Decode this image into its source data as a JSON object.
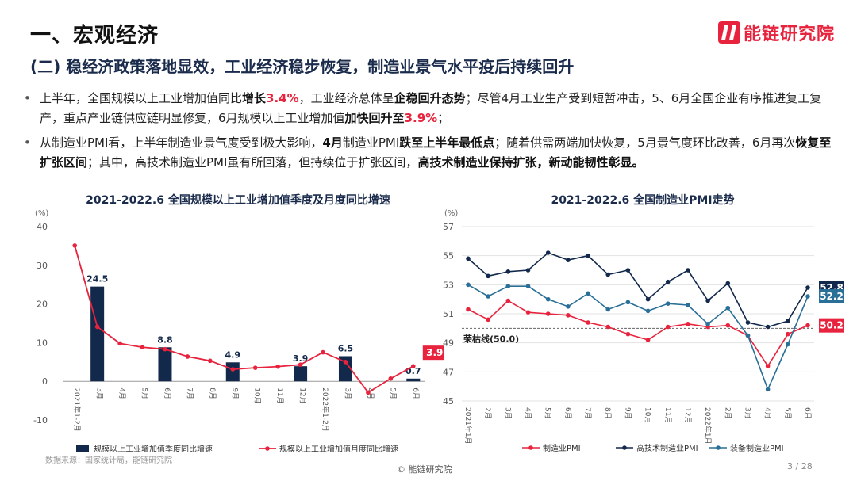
{
  "header": {
    "section_title": "一、宏观经济",
    "subtitle": "(二) 稳经济政策落地显效，工业经济稳步恢复，制造业景气水平疫后持续回升",
    "logo_text": "能链研究院"
  },
  "bullets": [
    {
      "segments": [
        {
          "text": "上半年，全国规模以上工业增加值同比",
          "style": "normal"
        },
        {
          "text": "增长",
          "style": "bold"
        },
        {
          "text": "3.4%",
          "style": "red"
        },
        {
          "text": "，工业经济总体呈",
          "style": "normal"
        },
        {
          "text": "企稳回升态势",
          "style": "bold"
        },
        {
          "text": "；尽管4月工业生产受到短暂冲击，5、6月全国企业有序推进复工复产，重点产业链供应链明显修复，6月规模以上工业增加值",
          "style": "normal"
        },
        {
          "text": "加快回升至",
          "style": "bold"
        },
        {
          "text": "3.9%",
          "style": "red"
        },
        {
          "text": "；",
          "style": "normal"
        }
      ]
    },
    {
      "segments": [
        {
          "text": "从制造业PMI看，上半年制造业景气度受到极大影响，",
          "style": "normal"
        },
        {
          "text": "4月",
          "style": "bold"
        },
        {
          "text": "制造业PMI",
          "style": "normal"
        },
        {
          "text": "跌至上半年最低点",
          "style": "bold"
        },
        {
          "text": "；随着供需两端加快恢复，5月景气度环比改善，6月再次",
          "style": "normal"
        },
        {
          "text": "恢复至扩张区间",
          "style": "bold"
        },
        {
          "text": "；其中，高技术制造业PMI虽有所回落，但持续位于扩张区间，",
          "style": "normal"
        },
        {
          "text": "高技术制造业保持扩张，新动能韧性彰显。",
          "style": "bold"
        }
      ]
    }
  ],
  "footer": {
    "source": "数据来源：国家统计局，能链研究院",
    "brand": "© 能链研究院",
    "page": "3 / 28"
  },
  "colors": {
    "navy": "#13294b",
    "red": "#e8233d",
    "teal": "#2a6f97",
    "grid": "#e3e3e3"
  },
  "chart_data": [
    {
      "type": "bar+line",
      "title": "2021-2022.6 全国规模以上工业增加值季度及月度同比增速",
      "yunit": "(%)",
      "ylim": [
        -10,
        40
      ],
      "yticks": [
        -10,
        0,
        10,
        20,
        30,
        40
      ],
      "categories": [
        "2021年1-2月",
        "3月",
        "4月",
        "5月",
        "6月",
        "7月",
        "8月",
        "9月",
        "10月",
        "11月",
        "12月",
        "2022年1-2月",
        "3月",
        "4月",
        "5月",
        "6月"
      ],
      "bar_series": {
        "name": "规模以上工业增加值季度同比增速",
        "values": [
          null,
          24.5,
          null,
          null,
          8.8,
          null,
          null,
          4.9,
          null,
          null,
          3.9,
          null,
          6.5,
          null,
          null,
          0.7
        ],
        "labels": [
          null,
          "24.5",
          null,
          null,
          "8.8",
          null,
          null,
          "4.9",
          null,
          null,
          "3.9",
          null,
          "6.5",
          null,
          null,
          "0.7"
        ]
      },
      "line_series": {
        "name": "规模以上工业增加值月度同比增速",
        "values": [
          35.1,
          14.1,
          9.8,
          8.8,
          8.3,
          6.4,
          5.3,
          3.1,
          3.5,
          3.8,
          4.3,
          7.5,
          5.0,
          -2.9,
          0.7,
          3.9
        ],
        "end_label": "3.9"
      }
    },
    {
      "type": "line",
      "title": "2021-2022.6 全国制造业PMI走势",
      "yunit": "(%)",
      "ylim": [
        45,
        57
      ],
      "yticks": [
        45,
        47,
        49,
        51,
        53,
        55,
        57
      ],
      "categories": [
        "2021年1月",
        "2月",
        "3月",
        "4月",
        "5月",
        "6月",
        "7月",
        "8月",
        "9月",
        "10月",
        "11月",
        "12月",
        "2022年1月",
        "2月",
        "3月",
        "4月",
        "5月",
        "6月"
      ],
      "reference_line": {
        "value": 50.0,
        "label": "荣枯线(50.0)"
      },
      "series": [
        {
          "name": "制造业PMI",
          "color_key": "red",
          "values": [
            51.3,
            50.6,
            51.9,
            51.1,
            51.0,
            50.9,
            50.4,
            50.1,
            49.6,
            49.2,
            50.1,
            50.3,
            50.1,
            50.2,
            49.5,
            47.4,
            49.6,
            50.2
          ],
          "end_label": "50.2"
        },
        {
          "name": "高技术制造业PMI",
          "color_key": "navy",
          "values": [
            54.8,
            53.6,
            53.9,
            54.0,
            55.2,
            54.7,
            55.0,
            53.7,
            54.0,
            52.0,
            53.2,
            54.0,
            51.9,
            53.1,
            50.4,
            50.1,
            50.5,
            52.8
          ],
          "end_label": "52.8"
        },
        {
          "name": "装备制造业PMI",
          "color_key": "teal",
          "values": [
            53.0,
            52.2,
            52.9,
            52.9,
            52.0,
            51.5,
            52.4,
            51.3,
            51.8,
            51.2,
            51.7,
            51.6,
            50.3,
            51.4,
            49.5,
            45.8,
            48.9,
            52.2
          ],
          "end_label": "52.2"
        }
      ]
    }
  ]
}
